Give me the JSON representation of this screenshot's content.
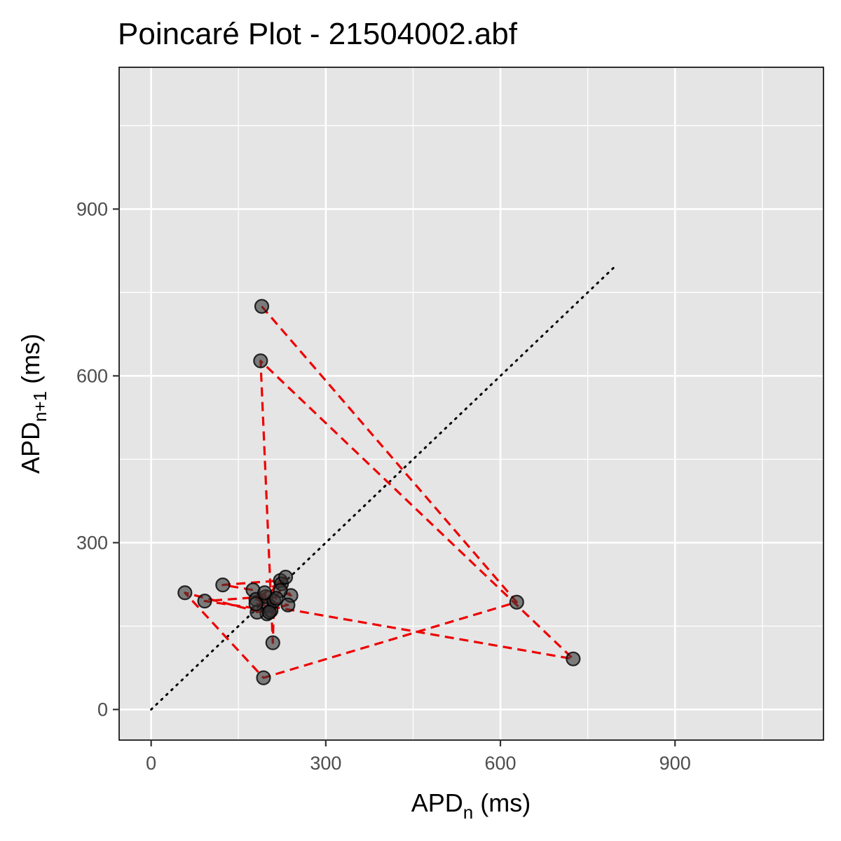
{
  "chart_data": {
    "type": "scatter",
    "title": "Poincaré Plot - 21504002.abf",
    "xlabel": {
      "base": "APD",
      "sub": "n",
      "suffix": " (ms)"
    },
    "ylabel": {
      "base": "APD",
      "sub": "n+1",
      "suffix": " (ms)"
    },
    "xlim": [
      -55,
      1155
    ],
    "ylim": [
      -55,
      1155
    ],
    "x_ticks": [
      0,
      300,
      600,
      900
    ],
    "y_ticks": [
      0,
      300,
      600,
      900
    ],
    "x_tick_labels": [
      "0",
      "300",
      "600",
      "900"
    ],
    "y_tick_labels": [
      "0",
      "300",
      "600",
      "900"
    ],
    "minor_breaks": [
      150,
      450,
      750,
      1050
    ],
    "grid": true,
    "panel_color": "#e5e5e5",
    "point_color": "#333333",
    "path_color": "#ee0000",
    "identity_line": {
      "from": [
        0,
        0
      ],
      "to": [
        800,
        800
      ],
      "style": "dotted",
      "color": "#000000"
    },
    "series": [
      {
        "points": [
          [
            190,
            725
          ],
          [
            628,
            193
          ],
          [
            193,
            57
          ],
          [
            58,
            210
          ],
          [
            199,
            172
          ],
          [
            175,
            215
          ],
          [
            123,
            224
          ],
          [
            222,
            232
          ],
          [
            224,
            226
          ],
          [
            240,
            205
          ],
          [
            222,
            214
          ],
          [
            202,
            187
          ],
          [
            182,
            175
          ],
          [
            235,
            188
          ],
          [
            180,
            198
          ],
          [
            231,
            238
          ],
          [
            197,
            203
          ],
          [
            92,
            195
          ],
          [
            206,
            178
          ],
          [
            211,
            195
          ],
          [
            209,
            120
          ],
          [
            188,
            627
          ],
          [
            725,
            91
          ],
          [
            180,
            190
          ],
          [
            215,
            200
          ],
          [
            195,
            210
          ],
          [
            203,
            175
          ]
        ]
      }
    ]
  }
}
